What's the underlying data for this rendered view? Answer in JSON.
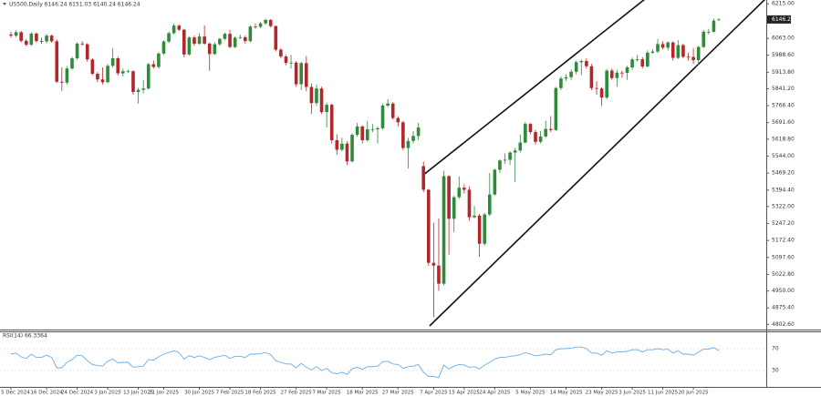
{
  "chart_data": [
    {
      "type": "candlestick",
      "title": "US500,Daily  6146.24 6151.03 6140.24 6146.24",
      "up_color": "#2f8a3a",
      "down_color": "#b3262a",
      "price_box_color": "#222222",
      "ylim": [
        4780,
        6232
      ],
      "yticks": [
        {
          "value": 4802.6,
          "label": "4802.60"
        },
        {
          "value": 4875.4,
          "label": "4875.40"
        },
        {
          "value": 4950,
          "label": "4950.00"
        },
        {
          "value": 5022.8,
          "label": "5022.80"
        },
        {
          "value": 5097.6,
          "label": "5097.60"
        },
        {
          "value": 5172.4,
          "label": "5172.40"
        },
        {
          "value": 5247.2,
          "label": "5247.20"
        },
        {
          "value": 5322,
          "label": "5322.00"
        },
        {
          "value": 5394.4,
          "label": "5394.40"
        },
        {
          "value": 5469.2,
          "label": "5469.20"
        },
        {
          "value": 5544,
          "label": "5544.00"
        },
        {
          "value": 5618.8,
          "label": "5618.80"
        },
        {
          "value": 5691.6,
          "label": "5691.60"
        },
        {
          "value": 5766.4,
          "label": "5766.40"
        },
        {
          "value": 5841.2,
          "label": "5841.20"
        },
        {
          "value": 5913.8,
          "label": "5913.80"
        },
        {
          "value": 5988.6,
          "label": "5988.60"
        },
        {
          "value": 6063,
          "label": "6063.00"
        },
        {
          "value": 6215,
          "label": "6215.00"
        }
      ],
      "categories": [
        "5 Dec 2024",
        null,
        null,
        null,
        null,
        null,
        null,
        "16 Dec 2024",
        null,
        null,
        null,
        null,
        null,
        "24 Dec 2024",
        null,
        null,
        null,
        null,
        null,
        "3 Jan 2025",
        null,
        null,
        null,
        null,
        null,
        "13 Jan 2025",
        null,
        null,
        null,
        null,
        "21 Jan 2025",
        null,
        null,
        null,
        null,
        null,
        null,
        "30 Jan 2025",
        null,
        null,
        null,
        null,
        null,
        "7 Feb 2025",
        null,
        null,
        null,
        null,
        null,
        "18 Feb 2025",
        null,
        null,
        null,
        null,
        null,
        null,
        "27 Feb 2025",
        null,
        null,
        null,
        null,
        null,
        "7 Mar 2025",
        null,
        null,
        null,
        null,
        null,
        null,
        "18 Mar 2025",
        null,
        null,
        null,
        null,
        null,
        null,
        "27 Mar 2025",
        null,
        null,
        null,
        null,
        null,
        null,
        "7 Apr 2025",
        null,
        null,
        null,
        null,
        null,
        "15 Apr 2025",
        null,
        null,
        null,
        null,
        null,
        "24 Apr 2025",
        null,
        null,
        null,
        null,
        null,
        null,
        "5 May 2025",
        null,
        null,
        null,
        null,
        null,
        null,
        "14 May 2025",
        null,
        null,
        null,
        null,
        null,
        null,
        "23 May 2025",
        null,
        null,
        null,
        null,
        null,
        "3 Jun 2025",
        null,
        null,
        null,
        null,
        null,
        "11 Jun 2025",
        null,
        null,
        null,
        null,
        null,
        "20 Jun 2025",
        null,
        null,
        null,
        null,
        null
      ],
      "open": [
        6080,
        6075,
        6090,
        6052,
        6035,
        6084,
        6051,
        6050,
        6075,
        6050,
        5872,
        5868,
        5930,
        5975,
        6040,
        6037,
        5970,
        5907,
        5882,
        5870,
        5942,
        5975,
        5909,
        5918,
        5918,
        5827,
        5836,
        5842,
        5949,
        5937,
        5996,
        6049,
        6086,
        6119,
        6101,
        5992,
        6067,
        6039,
        6071,
        6040,
        5994,
        6037,
        6061,
        6083,
        6025,
        6066,
        6068,
        6051,
        6115,
        6114,
        6129,
        6144,
        6117,
        6013,
        5983,
        5955,
        5956,
        5861,
        5954,
        5849,
        5778,
        5842,
        5738,
        5770,
        5614,
        5572,
        5599,
        5521,
        5638,
        5675,
        5614,
        5662,
        5662,
        5667,
        5767,
        5776,
        5712,
        5693,
        5580,
        5611,
        5633,
        5500,
        5396,
        5074,
        5062,
        4982,
        5456,
        5268,
        5363,
        5405,
        5396,
        5275,
        5282,
        5158,
        5287,
        5375,
        5484,
        5525,
        5528,
        5560,
        5569,
        5604,
        5686,
        5650,
        5607,
        5631,
        5664,
        5659,
        5844,
        5886,
        5892,
        5916,
        5958,
        5963,
        5940,
        5844,
        5842,
        5802,
        5921,
        5888,
        5912,
        5911,
        5935,
        5970,
        5971,
        5939,
        6000,
        6005,
        6038,
        6022,
        6045,
        5977,
        6033,
        5982,
        5981,
        5967,
        6025,
        6092,
        6092,
        6146.24
      ],
      "high": [
        6092,
        6098,
        6096,
        6060,
        6090,
        6089,
        6066,
        6082,
        6080,
        6058,
        5935,
        5940,
        5982,
        6045,
        6050,
        6042,
        5975,
        5915,
        5935,
        5950,
        6020,
        5982,
        5930,
        5925,
        5922,
        5845,
        5880,
        5955,
        5965,
        6002,
        6055,
        6092,
        6128,
        6125,
        6105,
        6072,
        6075,
        6085,
        6120,
        6045,
        6045,
        6065,
        6088,
        6100,
        6072,
        6080,
        6075,
        6120,
        6128,
        6135,
        6150,
        6148,
        6120,
        6020,
        5990,
        5990,
        5962,
        5960,
        5985,
        5865,
        5860,
        5850,
        5780,
        5775,
        5640,
        5625,
        5610,
        5645,
        5690,
        5680,
        5700,
        5685,
        5675,
        5775,
        5795,
        5782,
        5720,
        5700,
        5625,
        5655,
        5690,
        5520,
        5400,
        5250,
        5270,
        5480,
        5460,
        5370,
        5455,
        5420,
        5410,
        5325,
        5290,
        5295,
        5470,
        5490,
        5530,
        5555,
        5565,
        5580,
        5640,
        5695,
        5690,
        5660,
        5655,
        5700,
        5720,
        5850,
        5895,
        5905,
        5925,
        5965,
        5970,
        5975,
        5950,
        5875,
        5848,
        5928,
        5930,
        5925,
        5920,
        5942,
        5978,
        5990,
        5980,
        6010,
        6015,
        6060,
        6050,
        6050,
        6050,
        6055,
        6040,
        6000,
        6020,
        6030,
        6100,
        6105,
        6150,
        6151.03
      ],
      "low": [
        6066,
        6068,
        6045,
        6028,
        6030,
        6044,
        6040,
        6042,
        6044,
        5866,
        5832,
        5860,
        5925,
        5970,
        6030,
        5960,
        5900,
        5870,
        5860,
        5865,
        5935,
        5900,
        5895,
        5910,
        5815,
        5775,
        5820,
        5838,
        5930,
        5930,
        5990,
        6042,
        6080,
        6095,
        5980,
        5988,
        6030,
        6035,
        6035,
        5920,
        5990,
        6030,
        6055,
        6020,
        6020,
        6060,
        6040,
        6045,
        6105,
        6108,
        6122,
        6110,
        6005,
        5975,
        5945,
        5930,
        5850,
        5835,
        5830,
        5730,
        5765,
        5730,
        5670,
        5600,
        5550,
        5565,
        5505,
        5515,
        5630,
        5600,
        5608,
        5650,
        5600,
        5660,
        5760,
        5705,
        5675,
        5570,
        5490,
        5600,
        5615,
        5385,
        5060,
        4835,
        4950,
        4975,
        5110,
        5210,
        5355,
        5380,
        5260,
        5270,
        5100,
        5150,
        5280,
        5370,
        5470,
        5510,
        5505,
        5430,
        5560,
        5600,
        5640,
        5595,
        5600,
        5625,
        5650,
        5655,
        5835,
        5875,
        5880,
        5905,
        5900,
        5930,
        5835,
        5815,
        5765,
        5795,
        5880,
        5850,
        5890,
        5880,
        5925,
        5960,
        5930,
        5935,
        5995,
        5998,
        6015,
        6010,
        5965,
        5972,
        5975,
        5965,
        5950,
        5945,
        6020,
        6080,
        6088,
        6140.24
      ],
      "close": [
        6075,
        6090,
        6052,
        6035,
        6084,
        6051,
        6050,
        6075,
        6050,
        5872,
        5868,
        5930,
        5975,
        6040,
        6037,
        5970,
        5907,
        5882,
        5870,
        5942,
        5975,
        5909,
        5918,
        5918,
        5827,
        5836,
        5842,
        5949,
        5937,
        5996,
        6049,
        6086,
        6119,
        6101,
        5992,
        6067,
        6039,
        6071,
        6040,
        5994,
        6037,
        6061,
        6083,
        6025,
        6066,
        6068,
        6051,
        6115,
        6114,
        6129,
        6144,
        6117,
        6013,
        5983,
        5955,
        5956,
        5861,
        5954,
        5849,
        5778,
        5842,
        5738,
        5770,
        5614,
        5572,
        5599,
        5521,
        5638,
        5675,
        5614,
        5662,
        5662,
        5667,
        5767,
        5776,
        5712,
        5693,
        5580,
        5611,
        5633,
        5670,
        5396,
        5074,
        5062,
        4982,
        5456,
        5268,
        5363,
        5405,
        5396,
        5275,
        5282,
        5158,
        5287,
        5375,
        5484,
        5525,
        5528,
        5560,
        5569,
        5604,
        5686,
        5650,
        5607,
        5631,
        5664,
        5659,
        5844,
        5886,
        5892,
        5916,
        5958,
        5963,
        5940,
        5844,
        5842,
        5802,
        5921,
        5888,
        5912,
        5911,
        5935,
        5970,
        5971,
        5939,
        6000,
        6005,
        6038,
        6022,
        6045,
        5977,
        6033,
        5982,
        5981,
        5967,
        6025,
        6092,
        6092,
        6141,
        6146.24
      ]
    },
    {
      "type": "line",
      "title": "RSI(14) 66.3364",
      "color": "#6aaee8",
      "ylim": [
        0,
        100
      ],
      "yticks": [
        30,
        70
      ],
      "values": [
        60,
        62,
        55,
        52,
        60,
        54,
        54,
        58,
        54,
        35,
        35,
        45,
        50,
        58,
        57,
        48,
        41,
        39,
        38,
        47,
        51,
        44,
        45,
        45,
        36,
        37,
        38,
        50,
        49,
        55,
        60,
        63,
        66,
        63,
        51,
        57,
        54,
        57,
        54,
        50,
        54,
        56,
        58,
        52,
        56,
        56,
        54,
        60,
        60,
        61,
        63,
        59,
        48,
        45,
        42,
        42,
        35,
        43,
        36,
        31,
        37,
        30,
        34,
        26,
        24,
        27,
        23,
        33,
        36,
        32,
        37,
        37,
        38,
        46,
        47,
        42,
        41,
        34,
        37,
        38,
        41,
        27,
        19,
        19,
        17,
        40,
        33,
        38,
        41,
        40,
        36,
        37,
        33,
        40,
        45,
        51,
        54,
        54,
        56,
        57,
        59,
        63,
        60,
        57,
        58,
        60,
        59,
        68,
        70,
        70,
        71,
        73,
        73,
        70,
        62,
        62,
        58,
        66,
        62,
        64,
        64,
        65,
        68,
        68,
        64,
        68,
        68,
        70,
        68,
        69,
        62,
        66,
        60,
        60,
        58,
        64,
        69,
        69,
        72,
        66.3364
      ]
    }
  ]
}
